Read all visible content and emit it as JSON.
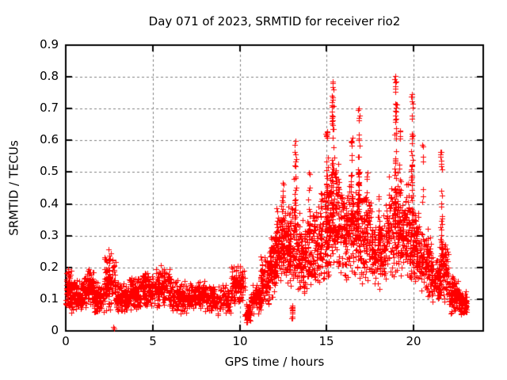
{
  "chart_data": {
    "type": "scatter",
    "title": "Day 071 of 2023, SRMTID for receiver rio2",
    "xlabel": "GPS time / hours",
    "ylabel": "SRMTID / TECUs",
    "xlim": [
      0,
      24
    ],
    "ylim": [
      0,
      0.9
    ],
    "xticks": [
      0,
      5,
      10,
      15,
      20
    ],
    "yticks": [
      0,
      0.1,
      0.2,
      0.3,
      0.4,
      0.5,
      0.6,
      0.7,
      0.8,
      0.9
    ],
    "grid": true,
    "legend": "none",
    "marker": {
      "shape": "plus",
      "size": 7,
      "color": "#ff0000"
    },
    "series": [
      {
        "name": "SRMTID",
        "band_segments": [
          [
            0.0,
            0.35,
            70,
            0.05,
            0.22
          ],
          [
            0.35,
            1.0,
            110,
            0.06,
            0.17
          ],
          [
            1.0,
            1.6,
            100,
            0.07,
            0.2
          ],
          [
            1.6,
            2.2,
            100,
            0.05,
            0.16
          ],
          [
            2.2,
            2.9,
            120,
            0.06,
            0.26
          ],
          [
            2.9,
            3.6,
            110,
            0.05,
            0.16
          ],
          [
            3.6,
            4.4,
            120,
            0.06,
            0.18
          ],
          [
            4.4,
            5.1,
            110,
            0.07,
            0.2
          ],
          [
            5.1,
            6.0,
            130,
            0.07,
            0.21
          ],
          [
            6.0,
            7.0,
            130,
            0.05,
            0.17
          ],
          [
            7.0,
            8.2,
            150,
            0.06,
            0.16
          ],
          [
            8.2,
            9.5,
            150,
            0.05,
            0.15
          ],
          [
            9.5,
            10.3,
            100,
            0.08,
            0.22
          ],
          [
            10.3,
            10.65,
            45,
            0.015,
            0.09
          ],
          [
            10.65,
            11.2,
            80,
            0.05,
            0.16
          ],
          [
            11.2,
            11.7,
            90,
            0.08,
            0.24
          ],
          [
            11.7,
            12.1,
            100,
            0.1,
            0.32
          ],
          [
            12.1,
            12.7,
            120,
            0.14,
            0.4
          ],
          [
            12.7,
            13.3,
            110,
            0.12,
            0.42
          ],
          [
            13.3,
            13.9,
            110,
            0.1,
            0.38
          ],
          [
            13.9,
            14.6,
            120,
            0.12,
            0.4
          ],
          [
            14.6,
            15.2,
            120,
            0.15,
            0.5
          ],
          [
            15.2,
            15.7,
            110,
            0.18,
            0.55
          ],
          [
            15.7,
            16.3,
            110,
            0.15,
            0.48
          ],
          [
            16.3,
            16.9,
            110,
            0.16,
            0.52
          ],
          [
            16.9,
            17.6,
            120,
            0.14,
            0.45
          ],
          [
            17.6,
            18.4,
            130,
            0.12,
            0.38
          ],
          [
            18.4,
            19.2,
            130,
            0.15,
            0.52
          ],
          [
            19.2,
            19.8,
            110,
            0.15,
            0.48
          ],
          [
            19.8,
            20.4,
            110,
            0.12,
            0.4
          ],
          [
            20.4,
            21.0,
            100,
            0.1,
            0.33
          ],
          [
            21.0,
            21.5,
            80,
            0.08,
            0.24
          ],
          [
            21.5,
            22.0,
            90,
            0.08,
            0.3
          ],
          [
            22.0,
            22.6,
            100,
            0.05,
            0.18
          ],
          [
            22.6,
            23.05,
            100,
            0.05,
            0.13
          ]
        ],
        "spikes": [
          [
            12.45,
            0.08,
            22,
            0.25,
            0.47
          ],
          [
            13.0,
            0.05,
            12,
            0.04,
            0.085
          ],
          [
            13.2,
            0.09,
            28,
            0.28,
            0.6
          ],
          [
            14.0,
            0.06,
            16,
            0.28,
            0.52
          ],
          [
            15.0,
            0.07,
            26,
            0.3,
            0.63
          ],
          [
            15.33,
            0.08,
            42,
            0.3,
            0.815
          ],
          [
            16.45,
            0.06,
            20,
            0.32,
            0.62
          ],
          [
            16.85,
            0.07,
            30,
            0.33,
            0.72
          ],
          [
            17.3,
            0.05,
            12,
            0.28,
            0.5
          ],
          [
            18.0,
            0.05,
            10,
            0.25,
            0.44
          ],
          [
            18.95,
            0.08,
            44,
            0.32,
            0.815
          ],
          [
            19.2,
            0.05,
            16,
            0.28,
            0.66
          ],
          [
            19.9,
            0.07,
            38,
            0.3,
            0.75
          ],
          [
            20.52,
            0.03,
            7,
            0.4,
            0.6
          ],
          [
            21.58,
            0.06,
            28,
            0.18,
            0.585
          ]
        ],
        "outliers": [
          [
            2.74,
            0.012
          ],
          [
            2.8,
            0.008
          ]
        ]
      }
    ]
  },
  "frame": {
    "background": "#ffffff",
    "border_color": "#000000",
    "grid_color": "#808080",
    "text_color": "#000000"
  }
}
